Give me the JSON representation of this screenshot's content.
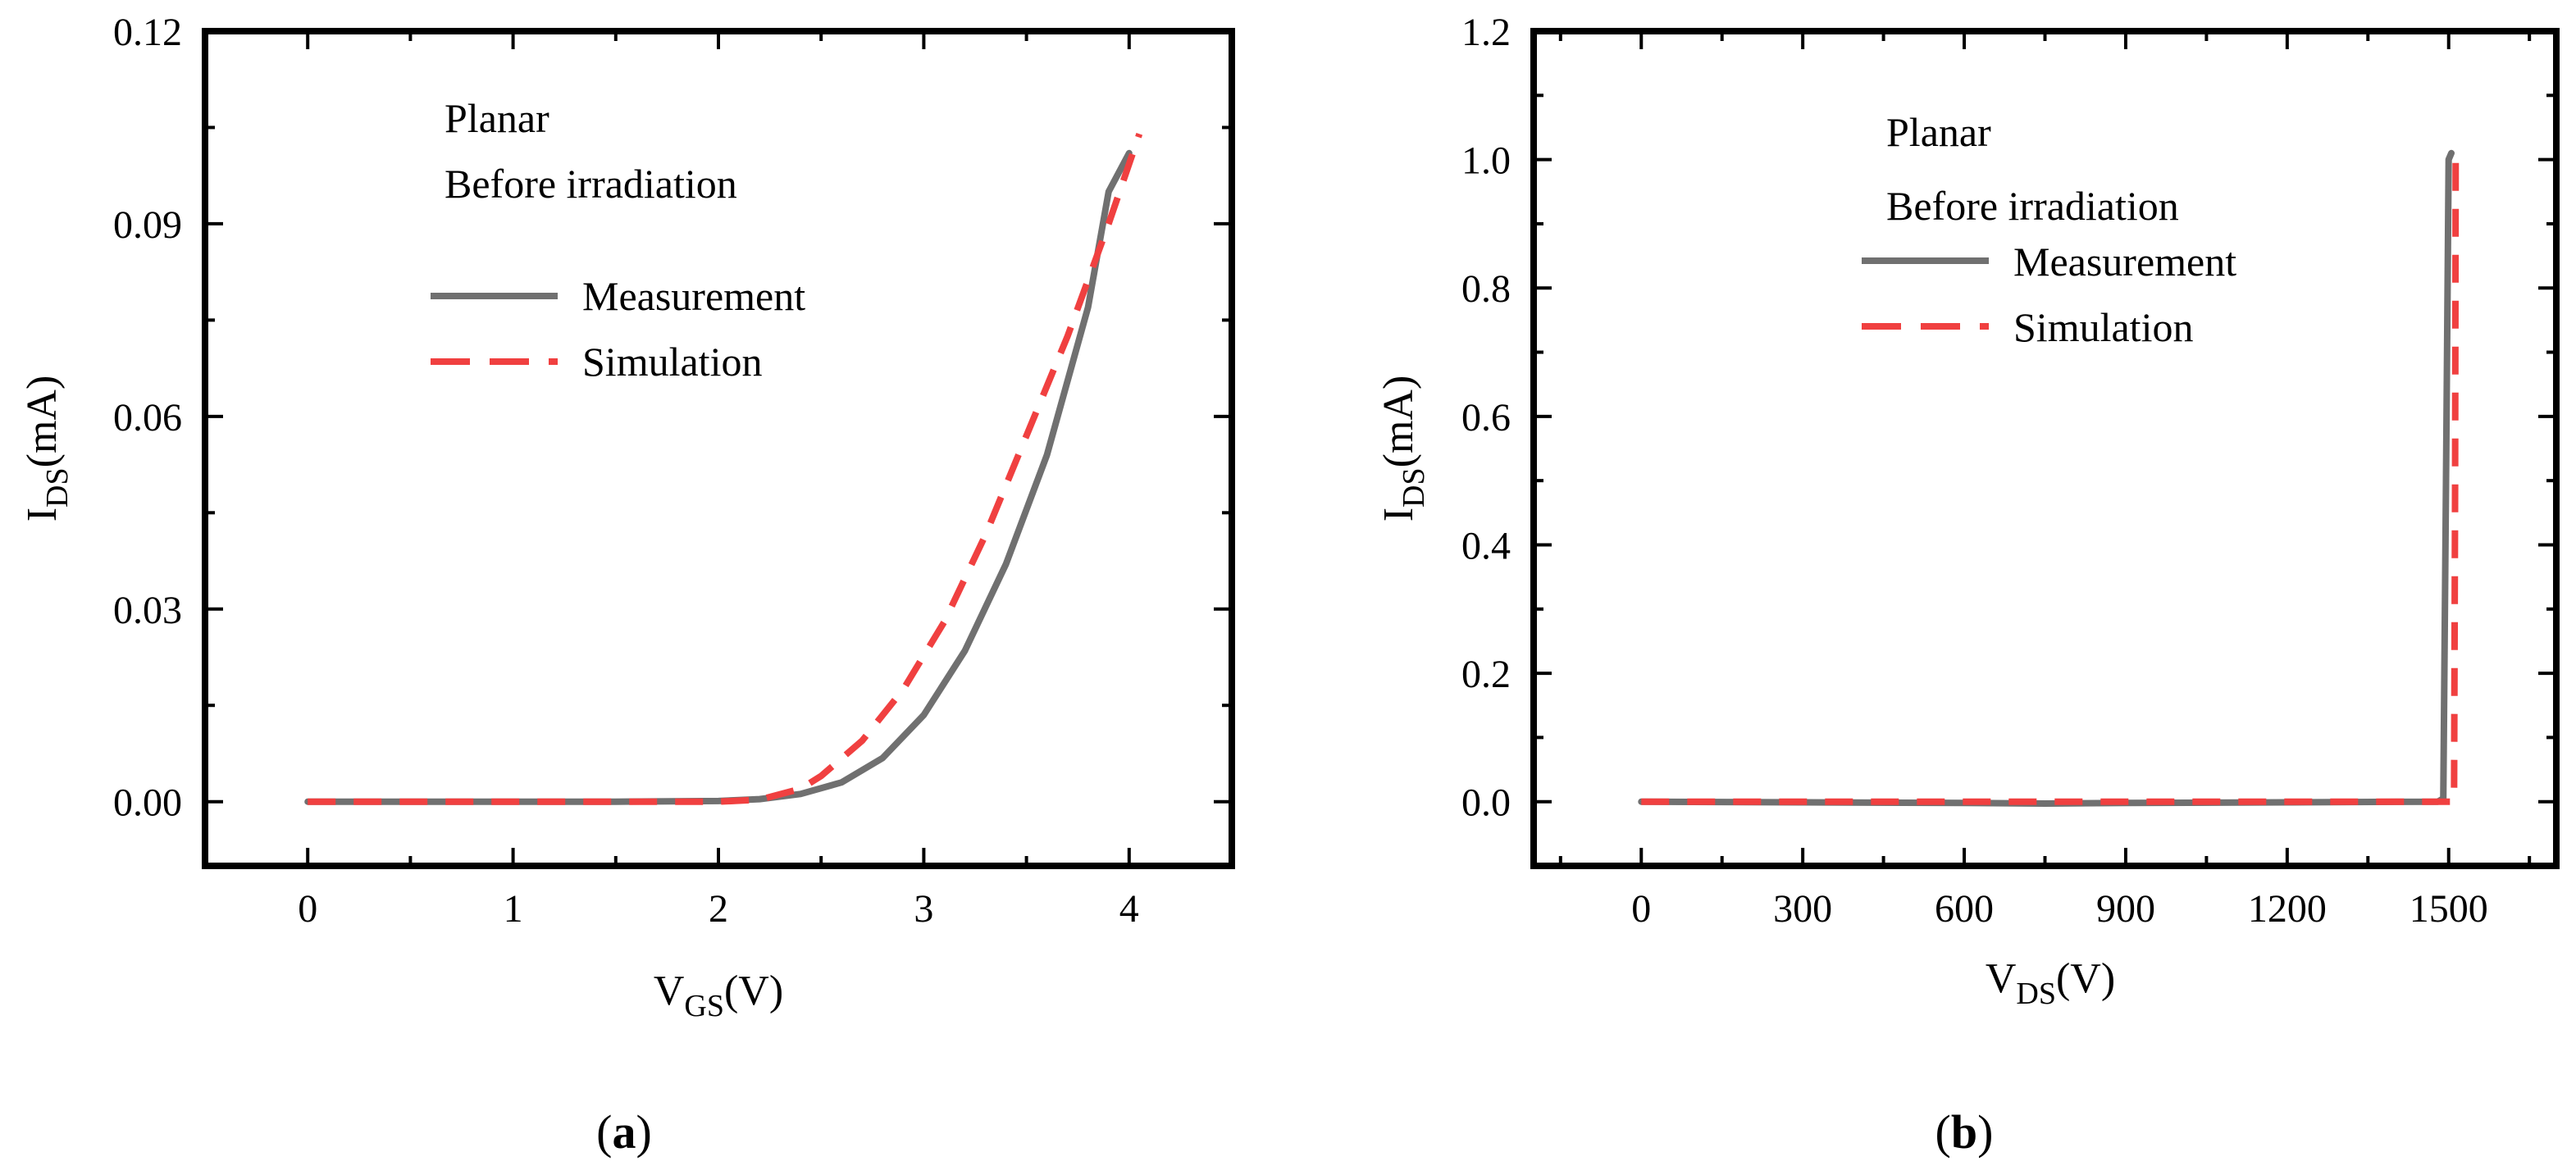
{
  "chart_data": [
    {
      "type": "line",
      "panel_label": "a",
      "annotations": [
        "Planar",
        "Before irradiation"
      ],
      "xlabel": {
        "main": "V",
        "sub": "GS",
        "unit": "(V)"
      },
      "ylabel": {
        "main": "I",
        "sub": "DS",
        "unit": "(mA)"
      },
      "xlim": [
        -0.5,
        4.5
      ],
      "ylim": [
        -0.01,
        0.12
      ],
      "xticks": [
        0,
        1,
        2,
        3,
        4
      ],
      "xtick_labels": [
        "0",
        "1",
        "2",
        "3",
        "4"
      ],
      "yticks": [
        0,
        0.03,
        0.06,
        0.09,
        0.12
      ],
      "ytick_labels": [
        "0.00",
        "0.03",
        "0.06",
        "0.09",
        "0.12"
      ],
      "legend": {
        "placement": "upper-left",
        "entries": [
          "Measurement",
          "Simulation"
        ]
      },
      "series": [
        {
          "name": "Measurement",
          "style": "solid",
          "color": "#707070",
          "x": [
            0,
            0.5,
            1,
            1.5,
            2,
            2.2,
            2.4,
            2.6,
            2.8,
            3.0,
            3.2,
            3.4,
            3.6,
            3.8,
            3.9,
            4.0
          ],
          "y": [
            0,
            0,
            0,
            0,
            0.0001,
            0.0004,
            0.0012,
            0.003,
            0.0068,
            0.0135,
            0.0235,
            0.037,
            0.054,
            0.077,
            0.095,
            0.101
          ]
        },
        {
          "name": "Simulation",
          "style": "dashed",
          "color": "#f04040",
          "x": [
            0,
            0.5,
            1,
            1.5,
            2,
            2.2,
            2.4,
            2.5,
            2.7,
            2.9,
            3.1,
            3.3,
            3.5,
            3.7,
            3.9,
            4.05
          ],
          "y": [
            0,
            0,
            0,
            0,
            0,
            0.0003,
            0.002,
            0.004,
            0.0095,
            0.0175,
            0.028,
            0.0415,
            0.057,
            0.0725,
            0.09,
            0.104
          ]
        }
      ]
    },
    {
      "type": "line",
      "panel_label": "b",
      "annotations": [
        "Planar",
        "Before irradiation"
      ],
      "xlabel": {
        "main": "V",
        "sub": "DS",
        "unit": "(V)"
      },
      "ylabel": {
        "main": "I",
        "sub": "DS",
        "unit": "(mA)"
      },
      "xlim": [
        -200,
        1700
      ],
      "ylim": [
        -0.1,
        1.2
      ],
      "xticks": [
        0,
        300,
        600,
        900,
        1200,
        1500
      ],
      "xtick_labels": [
        "0",
        "300",
        "600",
        "900",
        "1200",
        "1500"
      ],
      "yticks": [
        0,
        0.2,
        0.4,
        0.6,
        0.8,
        1.0,
        1.2
      ],
      "ytick_labels": [
        "0.0",
        "0.2",
        "0.4",
        "0.6",
        "0.8",
        "1.0",
        "1.2"
      ],
      "legend": {
        "placement": "upper-center",
        "entries": [
          "Measurement",
          "Simulation"
        ]
      },
      "series": [
        {
          "name": "Measurement",
          "style": "solid",
          "color": "#707070",
          "x": [
            0,
            300,
            600,
            750,
            900,
            1200,
            1480,
            1490,
            1495,
            1500,
            1505
          ],
          "y": [
            0,
            -0.001,
            -0.002,
            -0.003,
            -0.002,
            -0.001,
            0,
            0.005,
            0.5,
            1.0,
            1.01
          ]
        },
        {
          "name": "Simulation",
          "style": "dashed",
          "color": "#f04040",
          "x": [
            0,
            300,
            600,
            900,
            1200,
            1490,
            1510,
            1512,
            1513
          ],
          "y": [
            0,
            0,
            0,
            0,
            0,
            0,
            0,
            0.5,
            1.02
          ]
        }
      ]
    }
  ]
}
